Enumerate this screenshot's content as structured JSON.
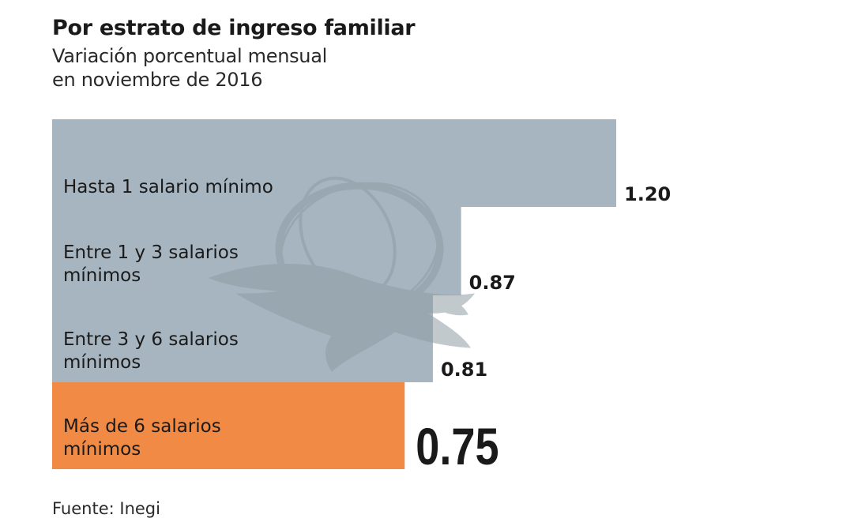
{
  "title": "Por estrato de ingreso familiar",
  "subtitle_lines": [
    "Variación porcentual mensual",
    "en noviembre de 2016"
  ],
  "source": "Fuente: Inegi",
  "colors": {
    "bar_default": "#a6b5bf",
    "bar_highlight": "#f08a45",
    "watermark": "#8f9da6",
    "text": "#1a1a1a"
  },
  "watermark_icon": "eagle-globe-logo-icon",
  "chart_data": {
    "type": "bar",
    "orientation": "horizontal",
    "categories": [
      [
        "Hasta 1 salario mínimo"
      ],
      [
        "Entre 1 y 3 salarios",
        "mínimos"
      ],
      [
        "Entre 3 y 6 salarios",
        "mínimos"
      ],
      [
        "Más de 6 salarios",
        "mínimos"
      ]
    ],
    "values": [
      1.2,
      0.87,
      0.81,
      0.75
    ],
    "value_labels": [
      "1.20",
      "0.87",
      "0.81",
      "0.75"
    ],
    "highlight_index": 3,
    "xlim": [
      0,
      1.2
    ],
    "grid": false,
    "legend": "none"
  }
}
